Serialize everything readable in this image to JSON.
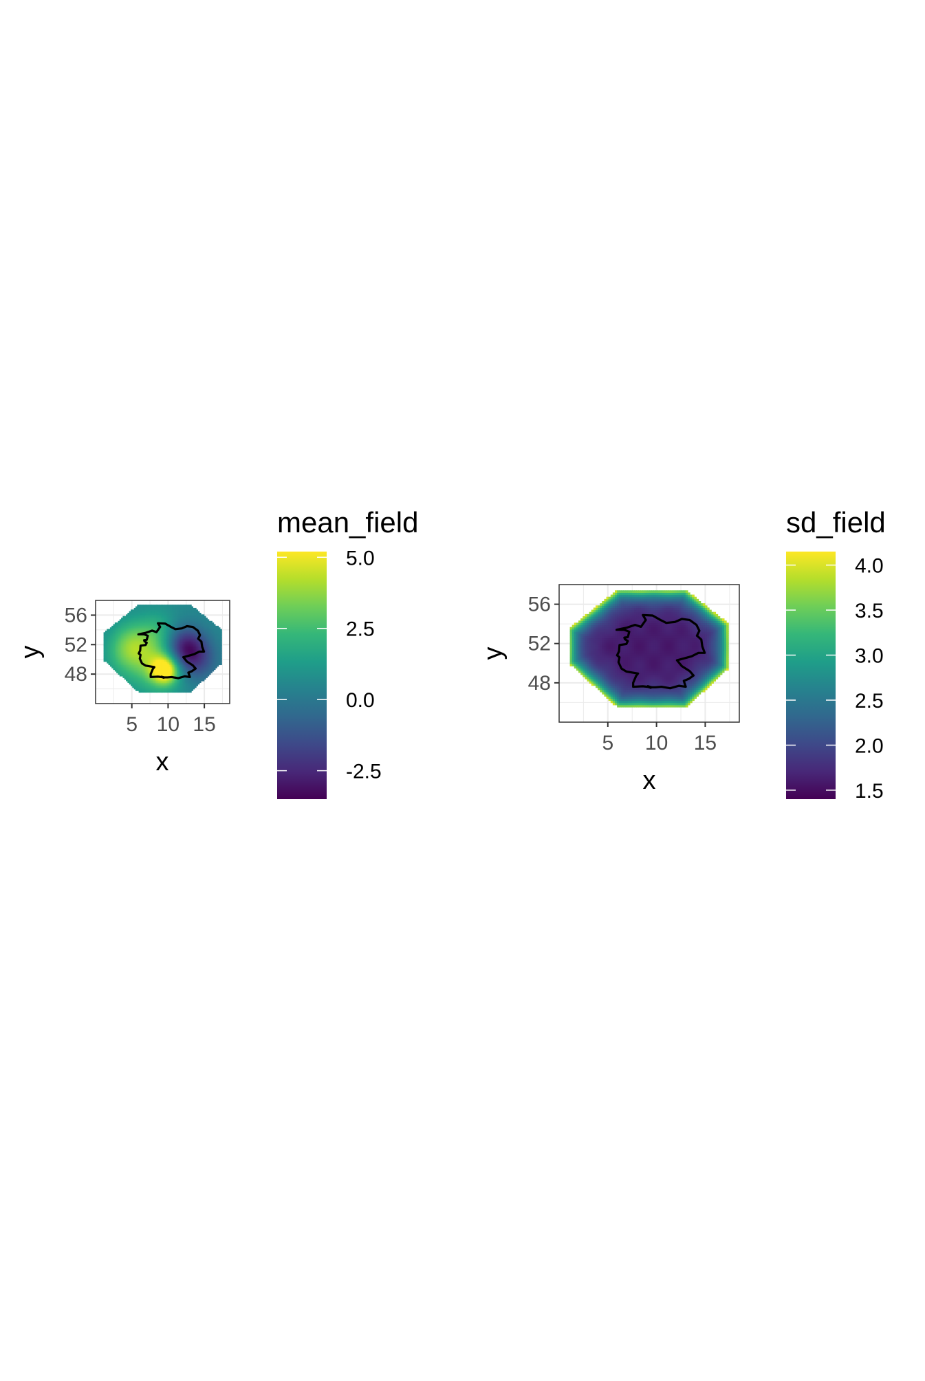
{
  "colors": {
    "viridis": [
      "#440154",
      "#482878",
      "#3e4989",
      "#31688e",
      "#26828e",
      "#1f9e89",
      "#35b779",
      "#6ece58",
      "#b5de2b",
      "#fde725"
    ],
    "grid": "#ebebeb",
    "panel_border": "#333333",
    "border_line": "#000000"
  },
  "chart_data": [
    {
      "type": "heatmap",
      "xlabel": "x",
      "ylabel": "y",
      "xlim": [
        0,
        18.5
      ],
      "ylim": [
        44,
        58
      ],
      "x_ticks": [
        5,
        10,
        15
      ],
      "x_tick_labels": [
        "5",
        "10",
        "15"
      ],
      "y_ticks": [
        48,
        52,
        56
      ],
      "y_tick_labels": [
        "48",
        "52",
        "56"
      ],
      "grid": true,
      "region_polygon": [
        [
          6,
          57.5
        ],
        [
          13,
          57.5
        ],
        [
          17.4,
          54
        ],
        [
          17.4,
          49.5
        ],
        [
          13,
          45.5
        ],
        [
          6,
          45.5
        ],
        [
          1,
          50
        ],
        [
          1,
          53.5
        ]
      ],
      "value_range": [
        -3.5,
        5.2
      ],
      "base_value": 0.6,
      "field_peaks": [
        {
          "x": 9.6,
          "y": 48.6,
          "value": 5.0,
          "radius": 1.3
        },
        {
          "x": 8.5,
          "y": 49.8,
          "value": 3.5,
          "radius": 2.8
        },
        {
          "x": 5.0,
          "y": 52.6,
          "value": 2.3,
          "radius": 2.0
        },
        {
          "x": 4.0,
          "y": 50.5,
          "value": 1.8,
          "radius": 2.0
        },
        {
          "x": 12.2,
          "y": 51.6,
          "value": -3.0,
          "radius": 2.0
        },
        {
          "x": 13.8,
          "y": 49.8,
          "value": -1.2,
          "radius": 2.2
        },
        {
          "x": 8.5,
          "y": 54.3,
          "value": 1.5,
          "radius": 1.8
        }
      ],
      "legend": {
        "title": "mean_field",
        "position": "right",
        "breaks": [
          -2.5,
          0.0,
          2.5,
          5.0
        ],
        "labels": [
          "-2.5",
          "0.0",
          "2.5",
          "5.0"
        ],
        "limits": [
          -3.5,
          5.2
        ]
      }
    },
    {
      "type": "heatmap",
      "xlabel": "x",
      "ylabel": "y",
      "xlim": [
        0,
        18.5
      ],
      "ylim": [
        44,
        58
      ],
      "x_ticks": [
        5,
        10,
        15
      ],
      "x_tick_labels": [
        "5",
        "10",
        "15"
      ],
      "y_ticks": [
        48,
        52,
        56
      ],
      "y_tick_labels": [
        "48",
        "52",
        "56"
      ],
      "grid": true,
      "region_polygon": [
        [
          6,
          57.5
        ],
        [
          13,
          57.5
        ],
        [
          17.4,
          54
        ],
        [
          17.4,
          49.5
        ],
        [
          13,
          45.5
        ],
        [
          6,
          45.5
        ],
        [
          1,
          50
        ],
        [
          1,
          53.5
        ]
      ],
      "value_range": [
        1.4,
        4.15
      ],
      "interior_value": 1.6,
      "boundary_value": 4.0,
      "legend": {
        "title": "sd_field",
        "position": "right",
        "breaks": [
          1.5,
          2.0,
          2.5,
          3.0,
          3.5,
          4.0
        ],
        "labels": [
          "1.5",
          "2.0",
          "2.5",
          "3.0",
          "3.5",
          "4.0"
        ],
        "limits": [
          1.4,
          4.15
        ]
      }
    }
  ],
  "country_outline": [
    [
      5.9,
      53.4
    ],
    [
      6.9,
      53.6
    ],
    [
      7.8,
      53.9
    ],
    [
      8.4,
      53.7
    ],
    [
      8.9,
      54.4
    ],
    [
      8.6,
      54.9
    ],
    [
      9.6,
      54.85
    ],
    [
      10.4,
      54.4
    ],
    [
      11.0,
      54.1
    ],
    [
      11.9,
      54.2
    ],
    [
      12.6,
      54.5
    ],
    [
      13.4,
      54.4
    ],
    [
      14.1,
      53.9
    ],
    [
      14.4,
      53.3
    ],
    [
      14.15,
      52.8
    ],
    [
      14.6,
      52.4
    ],
    [
      14.7,
      51.7
    ],
    [
      14.95,
      51.05
    ],
    [
      14.3,
      51.05
    ],
    [
      13.6,
      50.7
    ],
    [
      12.5,
      50.4
    ],
    [
      12.1,
      50.3
    ],
    [
      12.6,
      49.7
    ],
    [
      13.4,
      49.2
    ],
    [
      13.8,
      48.75
    ],
    [
      13.3,
      48.4
    ],
    [
      12.8,
      48.2
    ],
    [
      13.0,
      47.6
    ],
    [
      12.3,
      47.7
    ],
    [
      11.4,
      47.45
    ],
    [
      10.5,
      47.6
    ],
    [
      9.9,
      47.55
    ],
    [
      9.5,
      47.55
    ],
    [
      8.6,
      47.65
    ],
    [
      7.6,
      47.6
    ],
    [
      7.6,
      48.0
    ],
    [
      7.9,
      48.7
    ],
    [
      8.1,
      48.95
    ],
    [
      6.9,
      49.15
    ],
    [
      6.4,
      49.45
    ],
    [
      6.1,
      50.1
    ],
    [
      6.2,
      50.6
    ],
    [
      5.95,
      50.8
    ],
    [
      6.15,
      51.2
    ],
    [
      6.2,
      51.85
    ],
    [
      6.9,
      51.95
    ],
    [
      7.05,
      52.25
    ],
    [
      6.75,
      52.45
    ],
    [
      6.7,
      52.6
    ],
    [
      7.05,
      52.65
    ],
    [
      7.2,
      53.2
    ],
    [
      6.7,
      53.4
    ],
    [
      5.9,
      53.4
    ]
  ],
  "lakes": [
    [
      [
        9.1,
        47.7
      ],
      [
        9.6,
        47.55
      ],
      [
        9.4,
        47.45
      ],
      [
        9.0,
        47.6
      ],
      [
        9.1,
        47.7
      ]
    ]
  ]
}
